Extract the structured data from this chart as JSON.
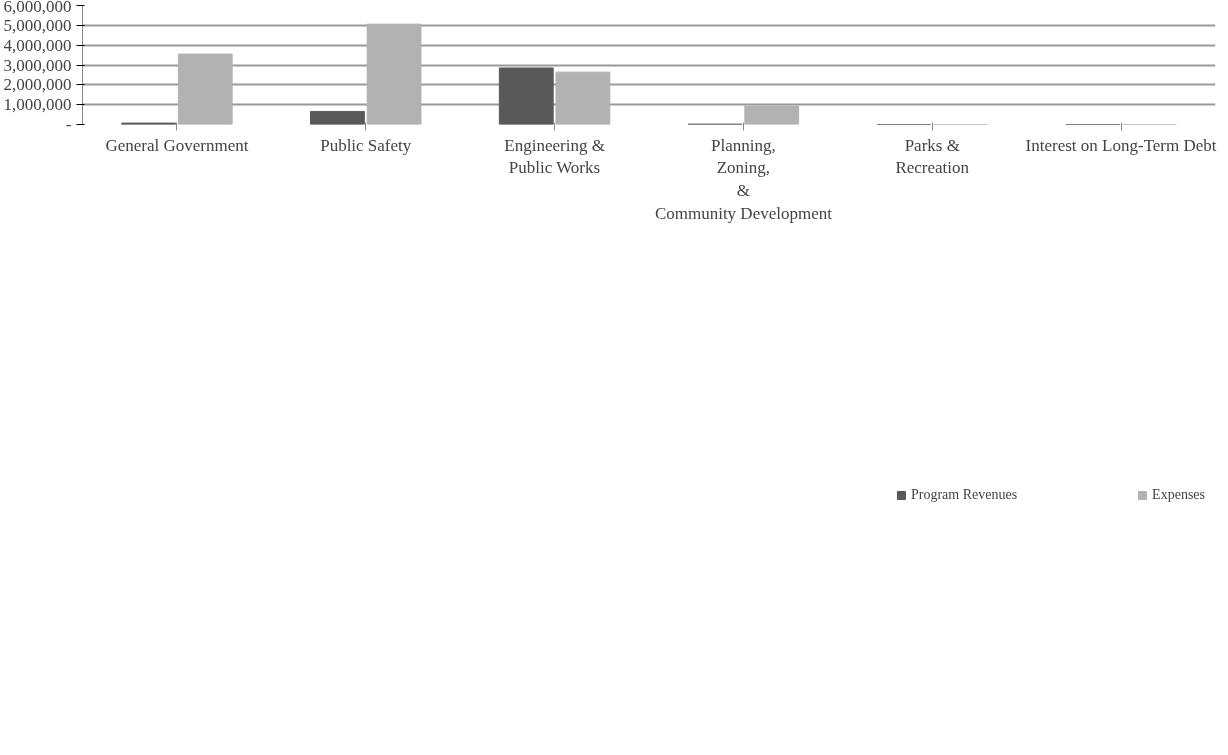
{
  "chart_data": {
    "type": "bar",
    "categories": [
      "General Government",
      "Public Safety",
      "Engineering & Public Works",
      "Planning, Zoning, & Community Development",
      "Parks & Recreation",
      "Interest on Long-Term Debt"
    ],
    "series": [
      {
        "name": "Program Revenues",
        "color": "#595959",
        "values": [
          70000,
          660000,
          2850000,
          20000,
          0,
          0
        ]
      },
      {
        "name": "Expenses",
        "color": "#b2b2b2",
        "values": [
          3550000,
          5060000,
          2640000,
          930000,
          0,
          0
        ]
      }
    ],
    "ylim": [
      0,
      6000000
    ],
    "yticks": [
      {
        "value": 0,
        "label": "-"
      },
      {
        "value": 1000000,
        "label": "1,000,000"
      },
      {
        "value": 2000000,
        "label": "2,000,000"
      },
      {
        "value": 3000000,
        "label": "3,000,000"
      },
      {
        "value": 4000000,
        "label": "4,000,000"
      },
      {
        "value": 5000000,
        "label": "5,000,000"
      },
      {
        "value": 6000000,
        "label": "6,000,000"
      }
    ],
    "grid": "y",
    "legend": "bottom"
  }
}
